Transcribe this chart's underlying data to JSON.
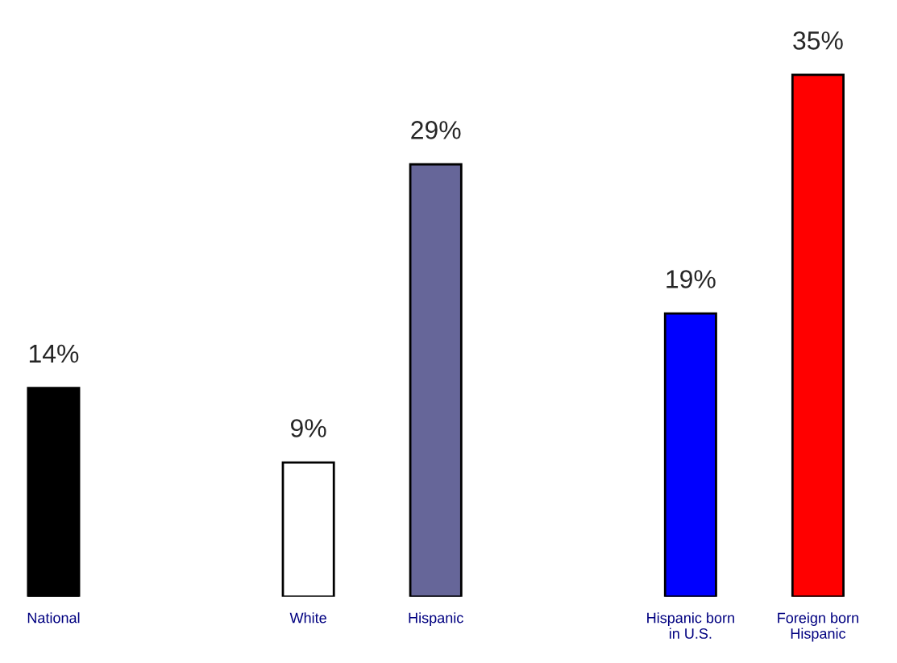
{
  "chart_data": {
    "type": "bar",
    "categories": [
      "National",
      null,
      "White",
      "Hispanic",
      null,
      "Hispanic born\nin U.S.",
      "Foreign born\nHispanic"
    ],
    "values": [
      14,
      null,
      9,
      29,
      null,
      19,
      35
    ],
    "colors": [
      "#000000",
      null,
      "#ffffff",
      "#666699",
      null,
      "#0000ff",
      "#ff0000"
    ],
    "value_labels": [
      "14%",
      null,
      "9%",
      "29%",
      null,
      "19%",
      "35%"
    ],
    "grid": false,
    "legend": false
  }
}
